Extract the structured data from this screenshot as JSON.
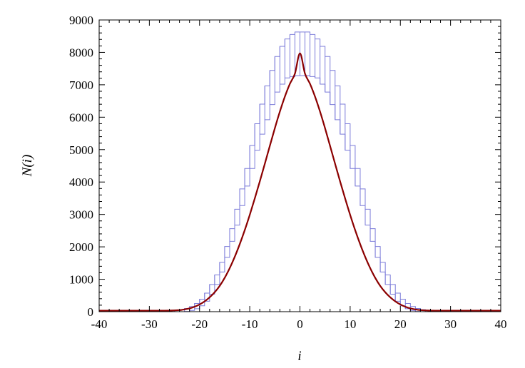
{
  "chart_data": {
    "type": "line",
    "title": "",
    "xlabel": "i",
    "ylabel": "N(i)",
    "xlim": [
      -40,
      40
    ],
    "ylim": [
      0,
      9000
    ],
    "x_ticks": [
      -40,
      -30,
      -20,
      -10,
      0,
      10,
      20,
      30,
      40
    ],
    "x_tick_labels": [
      "-40",
      "-30",
      "-20",
      "-10",
      "0",
      "10",
      "20",
      "30",
      "40"
    ],
    "y_ticks": [
      0,
      1000,
      2000,
      3000,
      4000,
      5000,
      6000,
      7000,
      8000,
      9000
    ],
    "y_tick_labels": [
      "0",
      "1000",
      "2000",
      "3000",
      "4000",
      "5000",
      "6000",
      "7000",
      "8000",
      "9000"
    ],
    "grid": false,
    "legend": "none",
    "series": [
      {
        "kind": "step-histogram-band",
        "color": "#7b7bd9",
        "x": [
          -40,
          -39,
          -38,
          -37,
          -36,
          -35,
          -34,
          -33,
          -32,
          -31,
          -30,
          -29,
          -28,
          -27,
          -26,
          -25,
          -24,
          -23,
          -22,
          -21,
          -20,
          -19,
          -18,
          -17,
          -16,
          -15,
          -14,
          -13,
          -12,
          -11,
          -10,
          -9,
          -8,
          -7,
          -6,
          -5,
          -4,
          -3,
          -2,
          -1,
          0,
          1,
          2,
          3,
          4,
          5,
          6,
          7,
          8,
          9,
          10,
          11,
          12,
          13,
          14,
          15,
          16,
          17,
          18,
          19,
          20,
          21,
          22,
          23,
          24,
          25,
          26,
          27,
          28,
          29,
          30,
          31,
          32,
          33,
          34,
          35,
          36,
          37,
          38,
          39,
          40
        ],
        "lower": [
          0,
          0,
          0,
          0,
          0,
          0,
          0,
          0,
          0,
          0,
          0,
          0,
          0,
          0,
          0,
          0,
          0,
          6,
          39,
          91,
          182,
          323,
          540,
          840,
          1224,
          1676,
          2169,
          2670,
          3273,
          3875,
          4418,
          4981,
          5477,
          5921,
          6389,
          6776,
          7020,
          7211,
          7254,
          7284,
          7284,
          7284,
          7254,
          7211,
          7020,
          6776,
          6389,
          5921,
          5477,
          4981,
          4418,
          3875,
          3273,
          2670,
          2169,
          1676,
          1224,
          840,
          540,
          323,
          182,
          91,
          39,
          6,
          0,
          0,
          0,
          0,
          0,
          0,
          0,
          0,
          0,
          0,
          0,
          0,
          0,
          0,
          0,
          0,
          0
        ],
        "upper": [
          37,
          37,
          37,
          37,
          37,
          37,
          37,
          37,
          37,
          37,
          37,
          37,
          37,
          37,
          37,
          37,
          61,
          98,
          160,
          254,
          386,
          573,
          840,
          1133,
          1521,
          2010,
          2561,
          3161,
          3787,
          4417,
          5128,
          5797,
          6402,
          6967,
          7443,
          7871,
          8186,
          8415,
          8551,
          8628,
          8628,
          8628,
          8551,
          8415,
          8186,
          7871,
          7443,
          6967,
          6402,
          5797,
          5128,
          4417,
          3787,
          3161,
          2561,
          2010,
          1521,
          1133,
          840,
          573,
          386,
          254,
          160,
          98,
          61,
          37,
          37,
          37,
          37,
          37,
          37,
          37,
          37,
          37,
          37,
          37,
          37,
          37,
          37,
          37,
          37
        ]
      },
      {
        "kind": "fit-curve",
        "color": "#8b0000",
        "x": [
          -40,
          -38,
          -36,
          -34,
          -32,
          -30,
          -28,
          -26,
          -24,
          -23,
          -22,
          -21,
          -20,
          -19,
          -18,
          -17,
          -16,
          -15,
          -14,
          -13,
          -12,
          -11,
          -10,
          -9,
          -8,
          -7,
          -6,
          -5,
          -4,
          -3,
          -2,
          -1,
          0,
          1,
          2,
          3,
          4,
          5,
          6,
          7,
          8,
          9,
          10,
          11,
          12,
          13,
          14,
          15,
          16,
          17,
          18,
          19,
          20,
          21,
          22,
          23,
          24,
          26,
          28,
          30,
          32,
          34,
          36,
          38,
          40
        ],
        "y": [
          32,
          32,
          32,
          32,
          32,
          32,
          32,
          33,
          48,
          69,
          100,
          151,
          222,
          317,
          441,
          597,
          793,
          1042,
          1341,
          1688,
          2081,
          2514,
          2986,
          3491,
          4018,
          4563,
          5114,
          5660,
          6173,
          6637,
          7031,
          7344,
          7973,
          7344,
          7031,
          6637,
          6173,
          5660,
          5114,
          4563,
          4018,
          3491,
          2986,
          2514,
          2081,
          1688,
          1341,
          1042,
          793,
          597,
          441,
          317,
          222,
          151,
          100,
          69,
          48,
          33,
          32,
          32,
          32,
          32,
          32,
          32,
          32
        ]
      }
    ]
  }
}
